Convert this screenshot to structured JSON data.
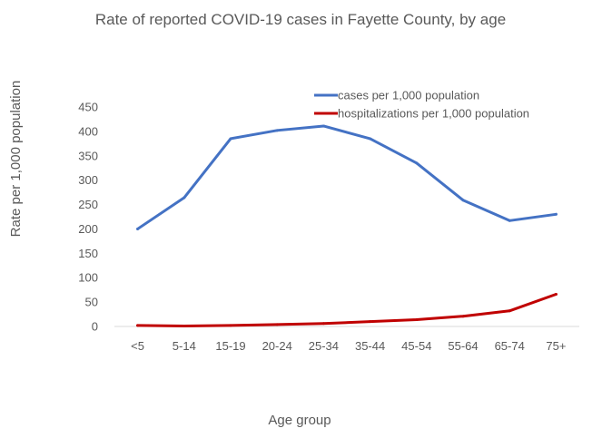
{
  "chart_data": {
    "type": "line",
    "title": "Rate of reported COVID-19 cases in Fayette County, by age",
    "xlabel": "Age group",
    "ylabel": "Rate per 1,000 population",
    "categories": [
      "<5",
      "5-14",
      "15-19",
      "20-24",
      "25-34",
      "35-44",
      "45-54",
      "55-64",
      "65-74",
      "75+"
    ],
    "ylim": [
      0,
      450
    ],
    "yticks": [
      0,
      50,
      100,
      150,
      200,
      250,
      300,
      350,
      400,
      450
    ],
    "grid": false,
    "legend_position": "top-right",
    "series": [
      {
        "name": "cases per 1,000 population",
        "color": "#4472c4",
        "values": [
          200,
          264,
          385,
          402,
          411,
          385,
          335,
          259,
          217,
          230
        ]
      },
      {
        "name": "hospitalizations per 1,000 population",
        "color": "#c00000",
        "values": [
          2,
          1,
          2,
          4,
          6,
          10,
          14,
          21,
          32,
          66
        ]
      }
    ]
  }
}
